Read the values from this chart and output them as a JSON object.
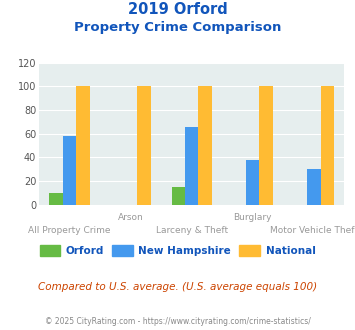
{
  "title_line1": "2019 Orford",
  "title_line2": "Property Crime Comparison",
  "orford": [
    10,
    0,
    15,
    0,
    0
  ],
  "new_hampshire": [
    58,
    0,
    66,
    38,
    30
  ],
  "national": [
    100,
    100,
    100,
    100,
    100
  ],
  "orford_color": "#66bb44",
  "nh_color": "#4499ee",
  "national_color": "#ffbb33",
  "bg_color": "#e6eeee",
  "title_color": "#1155bb",
  "xlabel_color": "#999999",
  "ylim": [
    0,
    120
  ],
  "yticks": [
    0,
    20,
    40,
    60,
    80,
    100,
    120
  ],
  "footer_text": "Compared to U.S. average. (U.S. average equals 100)",
  "copyright_text": "© 2025 CityRating.com - https://www.cityrating.com/crime-statistics/",
  "legend_labels": [
    "Orford",
    "New Hampshire",
    "National"
  ],
  "x_top_labels": [
    "",
    "Arson",
    "",
    "Burglary",
    ""
  ],
  "x_bot_labels": [
    "All Property Crime",
    "",
    "Larceny & Theft",
    "",
    "Motor Vehicle Theft"
  ]
}
